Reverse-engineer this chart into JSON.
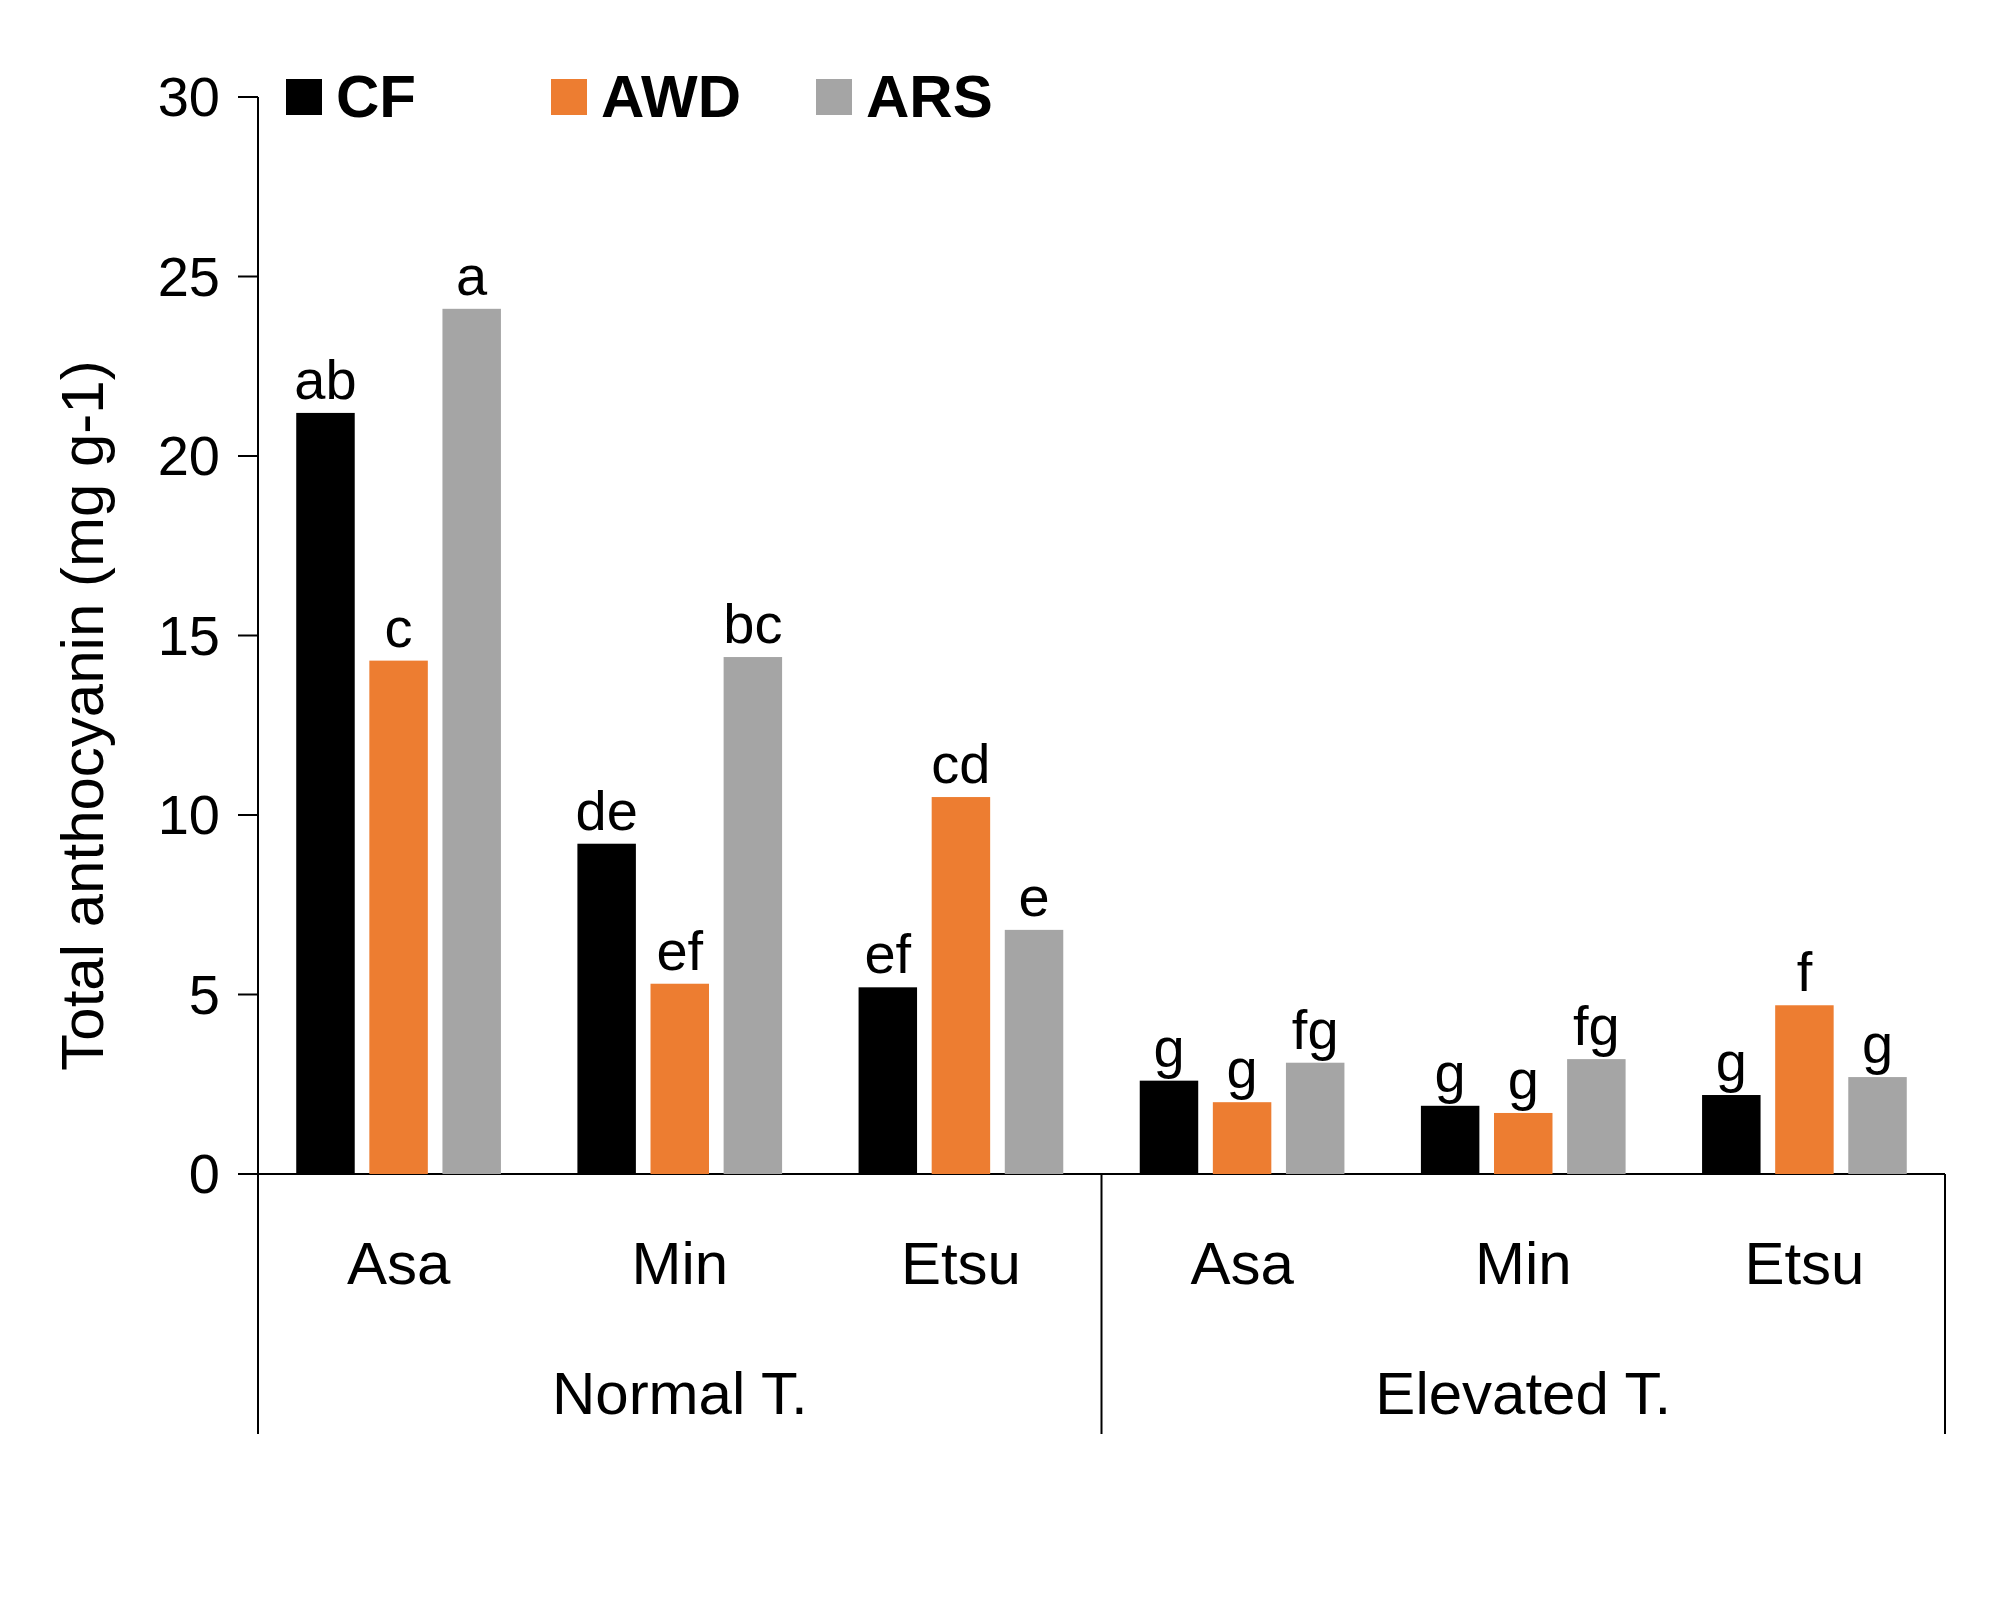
{
  "chart_data": {
    "type": "bar",
    "ylabel": "Total anthocyanin (mg g-1)",
    "categories": [
      "Asa",
      "Min",
      "Etsu",
      "Asa",
      "Min",
      "Etsu"
    ],
    "series": [
      {
        "name": "CF",
        "color": "#000000",
        "values": [
          21.2,
          9.2,
          5.2,
          2.6,
          1.9,
          2.2
        ],
        "value_labels": [
          "ab",
          "de",
          "ef",
          "g",
          "g",
          "g"
        ]
      },
      {
        "name": "AWD",
        "color": "#ed7d31",
        "values": [
          14.3,
          5.3,
          10.5,
          2.0,
          1.7,
          4.7
        ],
        "value_labels": [
          "c",
          "ef",
          "cd",
          "g",
          "g",
          "f"
        ]
      },
      {
        "name": "ARS",
        "color": "#a5a5a5",
        "values": [
          24.1,
          14.4,
          6.8,
          3.1,
          3.2,
          2.7
        ],
        "value_labels": [
          "a",
          "bc",
          "e",
          "fg",
          "fg",
          "g"
        ]
      }
    ],
    "annotations": [
      "Normal T.",
      "Elevated T."
    ],
    "ylim": [
      0,
      30
    ],
    "yticks": [
      0,
      5,
      10,
      15,
      20,
      25,
      30
    ],
    "legend": "top left"
  }
}
